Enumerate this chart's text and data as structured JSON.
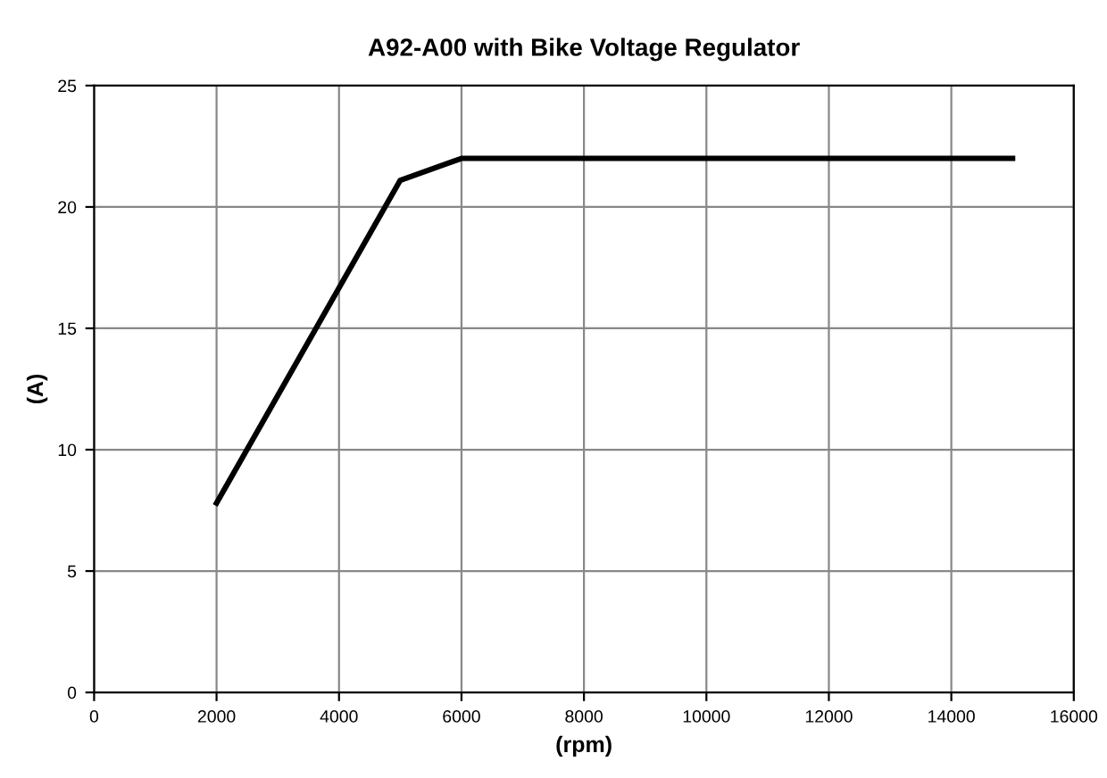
{
  "chart_data": {
    "type": "line",
    "title": "A92-A00 with Bike Voltage Regulator",
    "xlabel": "(rpm)",
    "ylabel": "(A)",
    "x": [
      2000,
      5000,
      6000,
      15000
    ],
    "series": [
      {
        "color": "#000000",
        "values": [
          7.8,
          21.1,
          22,
          22
        ]
      }
    ],
    "xlim": [
      0,
      16000
    ],
    "xticks": [
      0,
      2000,
      4000,
      6000,
      8000,
      10000,
      12000,
      14000,
      16000
    ],
    "ylim": [
      0,
      25
    ],
    "yticks": [
      0,
      5,
      10,
      15,
      20,
      25
    ],
    "grid": true,
    "marker": "none",
    "line_style": "solid"
  }
}
